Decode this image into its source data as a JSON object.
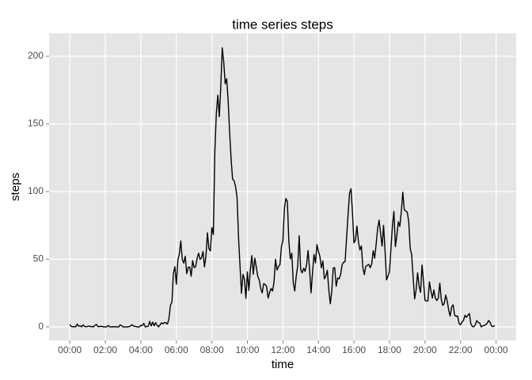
{
  "chart_data": {
    "type": "line",
    "title": "time series steps",
    "x_label": "time",
    "y_label": "steps",
    "x": [
      0,
      5,
      10,
      15,
      20,
      25,
      30,
      35,
      40,
      45,
      50,
      55,
      60,
      65,
      70,
      75,
      80,
      85,
      90,
      95,
      100,
      105,
      110,
      115,
      120,
      125,
      130,
      135,
      140,
      145,
      150,
      155,
      160,
      165,
      170,
      175,
      180,
      185,
      190,
      195,
      200,
      205,
      210,
      215,
      220,
      225,
      230,
      235,
      240,
      245,
      250,
      255,
      260,
      265,
      270,
      275,
      280,
      285,
      290,
      295,
      300,
      305,
      310,
      315,
      320,
      325,
      330,
      335,
      340,
      345,
      350,
      355,
      360,
      365,
      370,
      375,
      380,
      385,
      390,
      395,
      400,
      405,
      410,
      415,
      420,
      425,
      430,
      435,
      440,
      445,
      450,
      455,
      460,
      465,
      470,
      475,
      480,
      485,
      490,
      495,
      500,
      505,
      510,
      515,
      520,
      525,
      530,
      535,
      540,
      545,
      550,
      555,
      560,
      565,
      570,
      575,
      580,
      585,
      590,
      595,
      600,
      605,
      610,
      615,
      620,
      625,
      630,
      635,
      640,
      645,
      650,
      655,
      660,
      665,
      670,
      675,
      680,
      685,
      690,
      695,
      700,
      705,
      710,
      715,
      720,
      725,
      730,
      735,
      740,
      745,
      750,
      755,
      760,
      765,
      770,
      775,
      780,
      785,
      790,
      795,
      800,
      805,
      810,
      815,
      820,
      825,
      830,
      835,
      840,
      845,
      850,
      855,
      860,
      865,
      870,
      875,
      880,
      885,
      890,
      895,
      900,
      905,
      910,
      915,
      920,
      925,
      930,
      935,
      940,
      945,
      950,
      955,
      960,
      965,
      970,
      975,
      980,
      985,
      990,
      995,
      1000,
      1005,
      1010,
      1015,
      1020,
      1025,
      1030,
      1035,
      1040,
      1045,
      1050,
      1055,
      1060,
      1065,
      1070,
      1075,
      1080,
      1085,
      1090,
      1095,
      1100,
      1105,
      1110,
      1115,
      1120,
      1125,
      1130,
      1135,
      1140,
      1145,
      1150,
      1155,
      1160,
      1165,
      1170,
      1175,
      1180,
      1185,
      1190,
      1195,
      1200,
      1205,
      1210,
      1215,
      1220,
      1225,
      1230,
      1235,
      1240,
      1245,
      1250,
      1255,
      1260,
      1265,
      1270,
      1275,
      1280,
      1285,
      1290,
      1295,
      1300,
      1305,
      1310,
      1315,
      1320,
      1325,
      1330,
      1335,
      1340,
      1345,
      1350,
      1355,
      1360,
      1365,
      1370,
      1375,
      1380,
      1385,
      1390,
      1395,
      1400,
      1405,
      1410,
      1415,
      1420,
      1425,
      1430,
      1435
    ],
    "series": [
      {
        "color": "#000000",
        "values": [
          1.7,
          0.3,
          0.1,
          0.2,
          0.1,
          2.1,
          0.5,
          0.9,
          0,
          1.5,
          0.3,
          0.1,
          0.3,
          0.7,
          0.2,
          0.3,
          0,
          1.1,
          1.8,
          0.2,
          0.2,
          0.4,
          0.3,
          0,
          0,
          0,
          1.1,
          0,
          0,
          0.1,
          0,
          0.2,
          0,
          0,
          1.5,
          0.9,
          0,
          0,
          0,
          0,
          0.2,
          0.6,
          1.6,
          0.6,
          0.5,
          0.1,
          0,
          0,
          1.2,
          0.9,
          2.6,
          0,
          0.3,
          0.4,
          4.1,
          0.7,
          3.5,
          0.8,
          3.1,
          1.1,
          0,
          1.6,
          3,
          2.2,
          3.3,
          3,
          2.1,
          6.1,
          16,
          18.3,
          39.5,
          44.5,
          31.5,
          49.3,
          53.8,
          63.5,
          50,
          47.1,
          52.2,
          39.3,
          44,
          44.2,
          37.4,
          49,
          43.8,
          44.4,
          50.5,
          54.5,
          49.9,
          51,
          55.7,
          44.3,
          52.3,
          69.5,
          57.8,
          56.2,
          73.4,
          68.2,
          129.4,
          157.5,
          171.2,
          155.4,
          177.3,
          206.2,
          195.9,
          179.6,
          183.4,
          167,
          143.5,
          124,
          109.1,
          108.1,
          103.7,
          96,
          66.2,
          45.2,
          24.8,
          38.8,
          35,
          21.1,
          40.6,
          27,
          42.4,
          52.7,
          38.9,
          50.8,
          44.3,
          37.4,
          34.7,
          28.3,
          25.1,
          31.9,
          31.4,
          29.7,
          21.3,
          25.5,
          28.4,
          26.5,
          33.4,
          50,
          42,
          44.6,
          46,
          59.2,
          63.9,
          87.7,
          94.8,
          92.8,
          63.4,
          50.2,
          54.5,
          32.4,
          26.5,
          37.7,
          45.1,
          67.3,
          42.3,
          39.9,
          43.3,
          41,
          46.2,
          56.4,
          42.8,
          25.1,
          40,
          53.5,
          47.3,
          60.8,
          55.8,
          52,
          43.6,
          48.7,
          35.5,
          37.5,
          41.8,
          27.5,
          17.1,
          26.1,
          43.6,
          43.8,
          30,
          36.1,
          35.5,
          38.8,
          46,
          47.8,
          48.1,
          65.3,
          82.9,
          98.7,
          102.1,
          84,
          62.1,
          64.1,
          74.5,
          63.2,
          56.9,
          59.8,
          43.9,
          38.6,
          44.7,
          45.5,
          46.2,
          43.7,
          46.6,
          56.3,
          50.7,
          61.2,
          72.7,
          78.9,
          68.9,
          59.7,
          75.1,
          56.5,
          34.8,
          37.5,
          40.7,
          58,
          74.7,
          85.3,
          59.3,
          67.8,
          77.7,
          74.2,
          85.3,
          99.5,
          86.6,
          85.6,
          84.9,
          77.8,
          58,
          53.4,
          36.3,
          20.7,
          27.4,
          40,
          30.2,
          25.5,
          45.7,
          33.5,
          19.6,
          19,
          19.3,
          33.3,
          26.8,
          21.2,
          27.3,
          21.3,
          19.5,
          21.3,
          32.3,
          20.2,
          15.9,
          17.2,
          23.5,
          19.2,
          12.5,
          8,
          14.7,
          16.3,
          8.7,
          7.8,
          8.1,
          2.6,
          1.5,
          3.7,
          4.8,
          8.5,
          7.1,
          8.7,
          9.8,
          2.2,
          0.3,
          0.1,
          1.6,
          4.6,
          3.3,
          2.8,
          0,
          0.8,
          1,
          1.6,
          2.6,
          4.7,
          3.3,
          0.6,
          0.2,
          1.1
        ]
      }
    ],
    "xlim": [
      -70,
      1508
    ],
    "xticks": [
      {
        "value": 0,
        "label": "00:00"
      },
      {
        "value": 120,
        "label": "02:00"
      },
      {
        "value": 240,
        "label": "04:00"
      },
      {
        "value": 360,
        "label": "06:00"
      },
      {
        "value": 480,
        "label": "08:00"
      },
      {
        "value": 600,
        "label": "10:00"
      },
      {
        "value": 720,
        "label": "12:00"
      },
      {
        "value": 840,
        "label": "14:00"
      },
      {
        "value": 960,
        "label": "16:00"
      },
      {
        "value": 1080,
        "label": "18:00"
      },
      {
        "value": 1200,
        "label": "20:00"
      },
      {
        "value": 1320,
        "label": "22:00"
      },
      {
        "value": 1440,
        "label": "00:00"
      }
    ],
    "ylim": [
      -10,
      217
    ],
    "yticks": [
      0,
      50,
      100,
      150,
      200
    ],
    "grid": true
  }
}
